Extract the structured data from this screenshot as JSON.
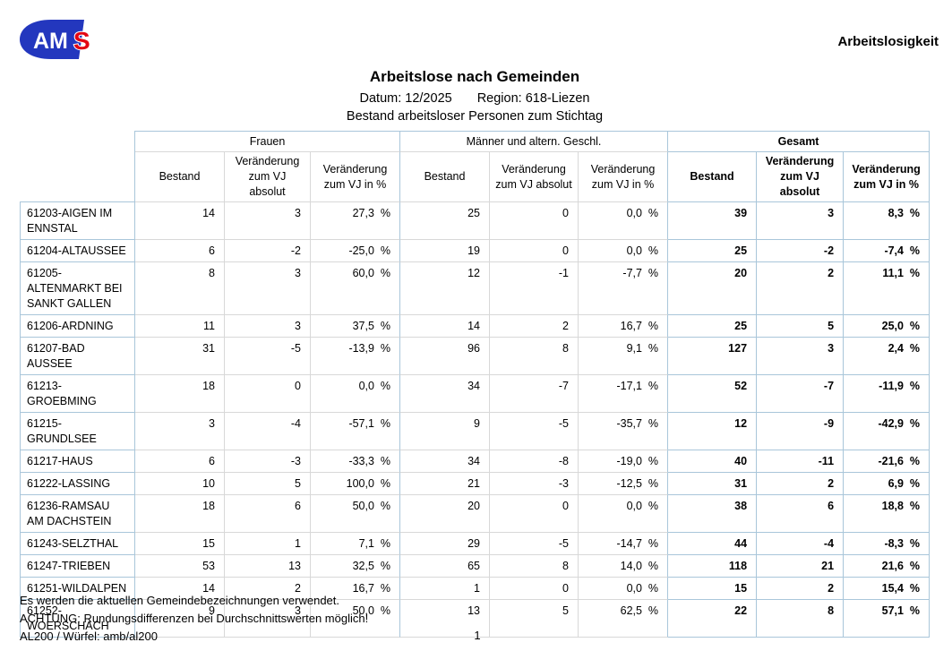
{
  "page": {
    "top_right_label": "Arbeitslosigkeit",
    "page_number": "1"
  },
  "logo": {
    "text_am": "AM",
    "text_s": "S",
    "blue": "#2337be",
    "red": "#e30613"
  },
  "header": {
    "title": "Arbeitslose nach Gemeinden",
    "date_label": "Datum: 12/2025",
    "region_label": "Region: 618-Liezen",
    "subtitle": "Bestand arbeitsloser Personen zum Stichtag"
  },
  "table": {
    "groups": [
      {
        "label": "Frauen"
      },
      {
        "label": "Männer und altern. Geschl."
      },
      {
        "label": "Gesamt"
      }
    ],
    "sub_headers": [
      "Bestand",
      "Veränderung zum VJ absolut",
      "Veränderung zum VJ in %"
    ],
    "rows": [
      {
        "name": "61203-AIGEN IM\nENNSTAL",
        "frauen": [
          "14",
          "3",
          "27,3  %"
        ],
        "maenner": [
          "25",
          "0",
          "0,0  %"
        ],
        "gesamt": [
          "39",
          "3",
          "8,3  %"
        ]
      },
      {
        "name": "61204-ALTAUSSEE",
        "frauen": [
          "6",
          "-2",
          "-25,0  %"
        ],
        "maenner": [
          "19",
          "0",
          "0,0  %"
        ],
        "gesamt": [
          "25",
          "-2",
          "-7,4  %"
        ]
      },
      {
        "name": "61205-\nALTENMARKT BEI\nSANKT GALLEN",
        "frauen": [
          "8",
          "3",
          "60,0  %"
        ],
        "maenner": [
          "12",
          "-1",
          "-7,7  %"
        ],
        "gesamt": [
          "20",
          "2",
          "11,1  %"
        ]
      },
      {
        "name": "61206-ARDNING",
        "frauen": [
          "11",
          "3",
          "37,5  %"
        ],
        "maenner": [
          "14",
          "2",
          "16,7  %"
        ],
        "gesamt": [
          "25",
          "5",
          "25,0  %"
        ]
      },
      {
        "name": "61207-BAD AUSSEE",
        "frauen": [
          "31",
          "-5",
          "-13,9  %"
        ],
        "maenner": [
          "96",
          "8",
          "9,1  %"
        ],
        "gesamt": [
          "127",
          "3",
          "2,4  %"
        ]
      },
      {
        "name": "61213-GROEBMING",
        "frauen": [
          "18",
          "0",
          "0,0  %"
        ],
        "maenner": [
          "34",
          "-7",
          "-17,1  %"
        ],
        "gesamt": [
          "52",
          "-7",
          "-11,9  %"
        ]
      },
      {
        "name": "61215-GRUNDLSEE",
        "frauen": [
          "3",
          "-4",
          "-57,1  %"
        ],
        "maenner": [
          "9",
          "-5",
          "-35,7  %"
        ],
        "gesamt": [
          "12",
          "-9",
          "-42,9  %"
        ]
      },
      {
        "name": "61217-HAUS",
        "frauen": [
          "6",
          "-3",
          "-33,3  %"
        ],
        "maenner": [
          "34",
          "-8",
          "-19,0  %"
        ],
        "gesamt": [
          "40",
          "-11",
          "-21,6  %"
        ]
      },
      {
        "name": "61222-LASSING",
        "frauen": [
          "10",
          "5",
          "100,0  %"
        ],
        "maenner": [
          "21",
          "-3",
          "-12,5  %"
        ],
        "gesamt": [
          "31",
          "2",
          "6,9  %"
        ]
      },
      {
        "name": "61236-RAMSAU\nAM DACHSTEIN",
        "frauen": [
          "18",
          "6",
          "50,0  %"
        ],
        "maenner": [
          "20",
          "0",
          "0,0  %"
        ],
        "gesamt": [
          "38",
          "6",
          "18,8  %"
        ]
      },
      {
        "name": "61243-SELZTHAL",
        "frauen": [
          "15",
          "1",
          "7,1  %"
        ],
        "maenner": [
          "29",
          "-5",
          "-14,7  %"
        ],
        "gesamt": [
          "44",
          "-4",
          "-8,3  %"
        ]
      },
      {
        "name": "61247-TRIEBEN",
        "frauen": [
          "53",
          "13",
          "32,5  %"
        ],
        "maenner": [
          "65",
          "8",
          "14,0  %"
        ],
        "gesamt": [
          "118",
          "21",
          "21,6  %"
        ]
      },
      {
        "name": "61251-WILDALPEN",
        "frauen": [
          "14",
          "2",
          "16,7  %"
        ],
        "maenner": [
          "1",
          "0",
          "0,0  %"
        ],
        "gesamt": [
          "15",
          "2",
          "15,4  %"
        ]
      },
      {
        "name": "61252-\nWOERSCHACH",
        "frauen": [
          "9",
          "3",
          "50,0  %"
        ],
        "maenner": [
          "13",
          "5",
          "62,5  %"
        ],
        "gesamt": [
          "22",
          "8",
          "57,1  %"
        ]
      }
    ]
  },
  "footer": {
    "line1": "Es werden die aktuellen Gemeindebezeichnungen verwendet.",
    "line2": "ACHTUNG: Rundungsdifferenzen bei Durchschnittswerten möglich!",
    "line3": "AL200 / Würfel: amb/al200"
  },
  "colors": {
    "border_blue": "#a9c6da",
    "border_gray": "#d8d8d8",
    "logo_blue": "#2337be",
    "logo_red": "#e30613"
  }
}
